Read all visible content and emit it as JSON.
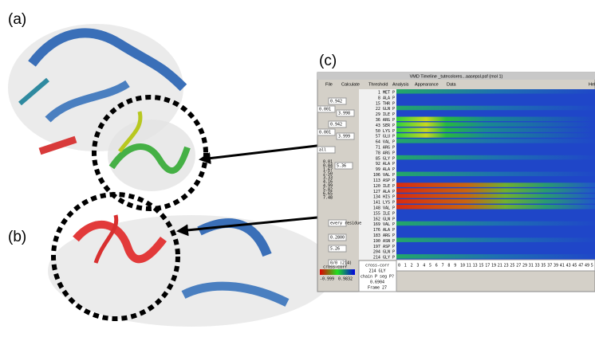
{
  "panels": {
    "a": "(a)",
    "b": "(b)",
    "c": "(c)"
  },
  "window": {
    "title": "VMD Timeline  _tutecolores...aasepsl.psf (mol 1)",
    "menu": [
      "File",
      "Calculate",
      "Threshold",
      "Analysis",
      "Appearance",
      "Data",
      "Hel"
    ],
    "controls": [
      "0.942",
      "0.001",
      "3.998",
      "0.942",
      "0.001",
      "3.999",
      "all",
      "5.36",
      "every residue",
      "0.2800",
      "5.26",
      "0/0 (214)"
    ],
    "scale_values": [
      "0.01",
      "0.84",
      "1.67",
      "2.50",
      "3.33",
      "4.16",
      "4.99",
      "5.82",
      "6.65",
      "7.48"
    ],
    "legend": {
      "title": "cross-corr",
      "min": "-0.999",
      "max": "0.9832"
    },
    "info": [
      "cross-corr",
      "214 GLY",
      "chain P seg P?",
      "0.6904",
      "Frame  27"
    ],
    "residues": [
      "1 MET P",
      "8 ALA P",
      "15 THR P",
      "22 GLN P",
      "29 ILE P",
      "36 ARG P",
      "43 SER P",
      "50 LYS P",
      "57 GLU P",
      "64 VAL P",
      "71 ARG P",
      "78 ARG P",
      "85 GLY P",
      "92 ALA P",
      "99 ALA P",
      "106 VAL P",
      "113 ASP P",
      "120 ILE P",
      "127 ALA P",
      "134 HIS P",
      "141 LYS P",
      "148 VAL P",
      "155 ILE P",
      "162 GLN P",
      "169 VAL P",
      "176 ALA P",
      "183 ARG P",
      "190 ASN P",
      "197 ASP P",
      "204 GLN P",
      "214 GLY P"
    ],
    "frames": [
      "0",
      "1",
      "2",
      "3",
      "4",
      "5",
      "6",
      "7",
      "8",
      "9",
      "10",
      "11",
      "13",
      "15",
      "17",
      "19",
      "21",
      "23",
      "25",
      "27",
      "29",
      "31",
      "33",
      "35",
      "37",
      "39",
      "41",
      "43",
      "45",
      "47",
      "49",
      "5"
    ]
  }
}
